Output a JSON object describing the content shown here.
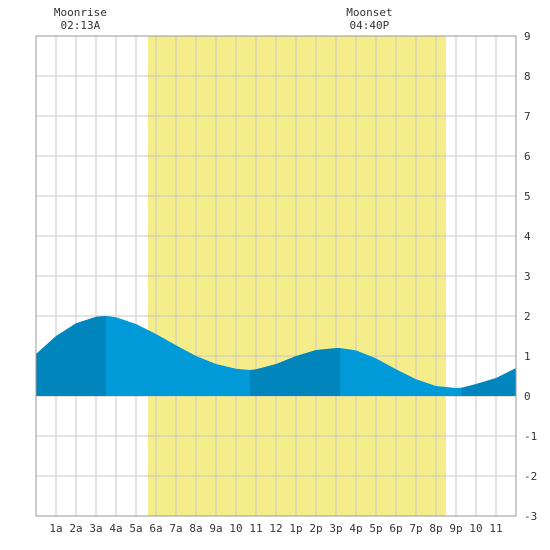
{
  "chart_data": {
    "type": "area",
    "title": "",
    "xlabel": "",
    "ylabel": "",
    "x_unit": "hours",
    "xlim": [
      0,
      24
    ],
    "ylim": [
      -3,
      9
    ],
    "grid": true,
    "y_ticks": [
      "-3",
      "-2",
      "-1",
      "0",
      "1",
      "2",
      "3",
      "4",
      "5",
      "6",
      "7",
      "8",
      "9"
    ],
    "x_tick_labels": [
      "1a",
      "2a",
      "3a",
      "4a",
      "5a",
      "6a",
      "7a",
      "8a",
      "9a",
      "10",
      "11",
      "12",
      "1p",
      "2p",
      "3p",
      "4p",
      "5p",
      "6p",
      "7p",
      "8p",
      "9p",
      "10",
      "11"
    ],
    "daylight": {
      "start": 5.6,
      "end": 20.5,
      "color": "#f5ec8a"
    },
    "series": [
      {
        "x": [
          0,
          1,
          2,
          3,
          3.5,
          4,
          5,
          6,
          7,
          8,
          9,
          10,
          10.7,
          11,
          12,
          13,
          14,
          15,
          15.2,
          16,
          17,
          18,
          19,
          20,
          21,
          21.3,
          22,
          23,
          24
        ],
        "values": [
          1.05,
          1.5,
          1.82,
          1.98,
          2.0,
          1.97,
          1.8,
          1.55,
          1.27,
          1.0,
          0.8,
          0.68,
          0.65,
          0.67,
          0.8,
          1.0,
          1.15,
          1.2,
          1.2,
          1.14,
          0.94,
          0.67,
          0.42,
          0.25,
          0.2,
          0.21,
          0.3,
          0.45,
          0.7
        ]
      }
    ],
    "shading_bands": [
      {
        "from": 0,
        "to": 3.5,
        "color": "#0085bc"
      },
      {
        "from": 3.5,
        "to": 10.7,
        "color": "#009ad9"
      },
      {
        "from": 10.7,
        "to": 15.2,
        "color": "#0085bc"
      },
      {
        "from": 15.2,
        "to": 21.3,
        "color": "#009ad9"
      },
      {
        "from": 21.3,
        "to": 24,
        "color": "#0085bc"
      }
    ],
    "annotations": [
      {
        "label": "Moonrise",
        "time": "02:13A",
        "x": 2.22
      },
      {
        "label": "Moonset",
        "time": "04:40P",
        "x": 16.67
      }
    ]
  }
}
